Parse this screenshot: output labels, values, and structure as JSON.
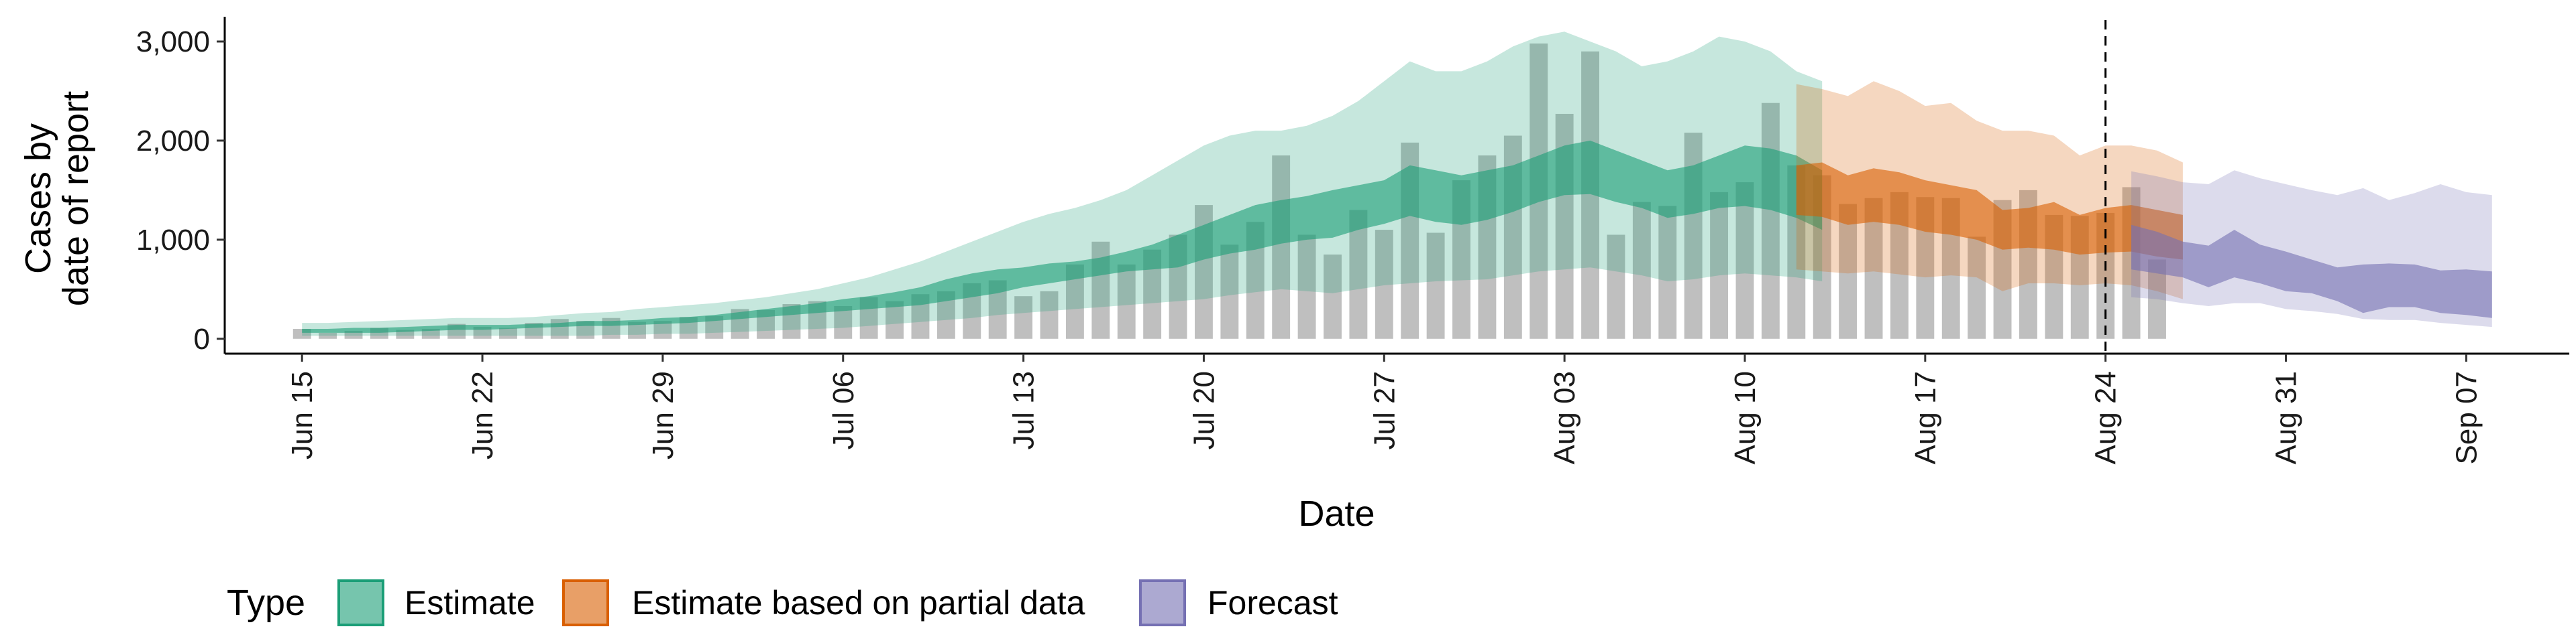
{
  "chart_data": {
    "type": "area",
    "xlabel": "Date",
    "ylabel_lines": [
      "Cases by",
      "date of report"
    ],
    "x_domain": [
      "2020-06-12",
      "2020-09-11"
    ],
    "y_domain": [
      -150,
      3250
    ],
    "y_ticks": [
      0,
      1000,
      2000,
      3000
    ],
    "y_tick_labels": [
      "0",
      "1,000",
      "2,000",
      "3,000"
    ],
    "x_ticks": [
      "2020-06-15",
      "2020-06-22",
      "2020-06-29",
      "2020-07-06",
      "2020-07-13",
      "2020-07-20",
      "2020-07-27",
      "2020-08-03",
      "2020-08-10",
      "2020-08-17",
      "2020-08-24",
      "2020-08-31",
      "2020-09-07"
    ],
    "x_tick_labels": [
      "Jun 15",
      "Jun 22",
      "Jun 29",
      "Jul 06",
      "Jul 13",
      "Jul 20",
      "Jul 27",
      "Aug 03",
      "Aug 10",
      "Aug 17",
      "Aug 24",
      "Aug 31",
      "Sep 07"
    ],
    "forecast_date": "2020-08-24",
    "bars": {
      "start": "2020-06-15",
      "values": [
        100,
        60,
        80,
        110,
        90,
        100,
        150,
        120,
        110,
        160,
        200,
        180,
        210,
        170,
        180,
        220,
        230,
        300,
        290,
        350,
        380,
        330,
        420,
        380,
        450,
        480,
        560,
        590,
        430,
        480,
        750,
        980,
        750,
        900,
        1050,
        1350,
        950,
        1180,
        1850,
        1050,
        850,
        1300,
        1100,
        1980,
        1070,
        1600,
        1850,
        2050,
        2980,
        2270,
        2900,
        1050,
        1380,
        1340,
        2080,
        1480,
        1580,
        2380,
        1750,
        1650,
        1360,
        1420,
        1480,
        1430,
        1420,
        1030,
        1400,
        1500,
        1250,
        1240,
        1270,
        1530,
        800
      ]
    },
    "series": [
      {
        "name": "Estimate",
        "color": "#1b9e77",
        "start": "2020-06-15",
        "outer_lower": [
          30,
          30,
          30,
          30,
          30,
          30,
          30,
          30,
          30,
          30,
          30,
          30,
          40,
          40,
          50,
          50,
          60,
          70,
          80,
          90,
          100,
          110,
          130,
          150,
          170,
          190,
          210,
          240,
          260,
          280,
          300,
          320,
          340,
          360,
          380,
          400,
          440,
          470,
          500,
          480,
          460,
          500,
          540,
          560,
          580,
          590,
          600,
          640,
          680,
          700,
          720,
          680,
          640,
          580,
          600,
          640,
          660,
          640,
          620,
          580
        ],
        "inner_lower": [
          60,
          60,
          60,
          60,
          70,
          80,
          90,
          90,
          100,
          110,
          120,
          130,
          130,
          140,
          150,
          160,
          180,
          200,
          220,
          240,
          260,
          280,
          300,
          320,
          340,
          380,
          420,
          460,
          520,
          560,
          600,
          640,
          680,
          700,
          720,
          800,
          860,
          900,
          960,
          1000,
          1020,
          1100,
          1160,
          1240,
          1180,
          1150,
          1200,
          1280,
          1380,
          1450,
          1460,
          1380,
          1320,
          1220,
          1260,
          1320,
          1340,
          1300,
          1220,
          1100
        ],
        "inner_upper": [
          100,
          100,
          110,
          110,
          120,
          130,
          140,
          140,
          140,
          150,
          160,
          180,
          180,
          190,
          210,
          220,
          240,
          270,
          300,
          330,
          360,
          400,
          430,
          470,
          520,
          600,
          660,
          700,
          720,
          760,
          780,
          820,
          880,
          950,
          1050,
          1150,
          1250,
          1350,
          1400,
          1440,
          1500,
          1550,
          1600,
          1750,
          1700,
          1650,
          1700,
          1750,
          1850,
          1950,
          2000,
          1900,
          1800,
          1700,
          1750,
          1850,
          1950,
          1920,
          1850,
          1700
        ],
        "outer_upper": [
          160,
          160,
          170,
          180,
          190,
          200,
          210,
          210,
          210,
          220,
          240,
          260,
          270,
          300,
          320,
          340,
          360,
          390,
          420,
          460,
          500,
          560,
          620,
          700,
          780,
          880,
          980,
          1080,
          1180,
          1260,
          1320,
          1400,
          1500,
          1650,
          1800,
          1950,
          2050,
          2100,
          2100,
          2150,
          2250,
          2400,
          2600,
          2800,
          2700,
          2700,
          2800,
          2950,
          3050,
          3100,
          3000,
          2900,
          2750,
          2800,
          2900,
          3050,
          3000,
          2900,
          2700,
          2600
        ]
      },
      {
        "name": "Estimate based on partial data",
        "color": "#d95f02",
        "start": "2020-08-12",
        "outer_lower": [
          700,
          680,
          660,
          680,
          650,
          620,
          640,
          620,
          480,
          560,
          560,
          540,
          560,
          540,
          480,
          400
        ],
        "inner_lower": [
          1250,
          1230,
          1150,
          1180,
          1150,
          1080,
          1050,
          1000,
          900,
          920,
          900,
          850,
          870,
          880,
          830,
          800
        ],
        "inner_upper": [
          1750,
          1780,
          1650,
          1720,
          1680,
          1600,
          1550,
          1500,
          1300,
          1320,
          1380,
          1250,
          1320,
          1350,
          1300,
          1250
        ],
        "outer_upper": [
          2570,
          2520,
          2450,
          2600,
          2500,
          2350,
          2380,
          2200,
          2100,
          2100,
          2050,
          1850,
          1950,
          1950,
          1900,
          1780
        ]
      },
      {
        "name": "Forecast",
        "color": "#7570b3",
        "start": "2020-08-25",
        "outer_lower": [
          420,
          400,
          360,
          330,
          360,
          360,
          300,
          280,
          250,
          200,
          190,
          190,
          160,
          140,
          120
        ],
        "inner_lower": [
          700,
          660,
          620,
          520,
          620,
          560,
          480,
          460,
          380,
          260,
          320,
          320,
          260,
          240,
          210
        ],
        "inner_upper": [
          1150,
          1080,
          980,
          940,
          1100,
          950,
          880,
          800,
          720,
          750,
          760,
          750,
          690,
          700,
          680
        ],
        "outer_upper": [
          1690,
          1640,
          1580,
          1560,
          1700,
          1620,
          1560,
          1500,
          1450,
          1520,
          1400,
          1470,
          1560,
          1480,
          1450
        ]
      }
    ],
    "legend": {
      "title": "Type",
      "position": "bottom-left",
      "items": [
        "Estimate",
        "Estimate based on partial data",
        "Forecast"
      ]
    }
  }
}
